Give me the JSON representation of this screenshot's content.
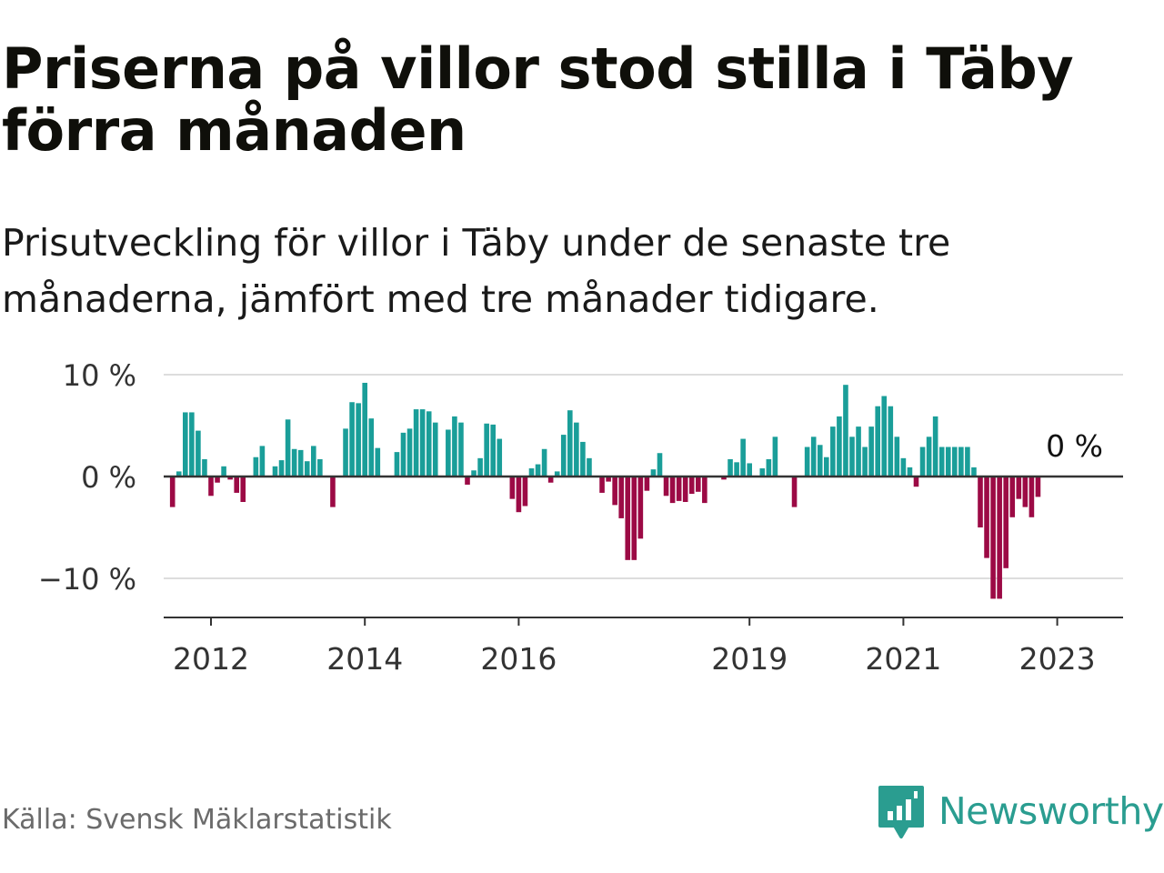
{
  "header": {
    "title": "Priserna på villor stod stilla i Täby förra månaden",
    "subtitle": "Prisutveckling för villor i Täby under de senaste tre månaderna, jämfört med tre månader tidigare."
  },
  "footer": {
    "source": "Källa: Svensk Mäklarstatistik",
    "brand": "Newsworthy"
  },
  "colors": {
    "positive": "#1a9e99",
    "negative": "#9c0a45",
    "grid": "#dddddd",
    "axis": "#333333",
    "brand": "#2a9d90"
  },
  "chart_data": {
    "type": "bar",
    "title": "Priserna på villor stod stilla i Täby förra månaden",
    "subtitle": "Prisutveckling för villor i Täby under de senaste tre månaderna, jämfört med tre månader tidigare.",
    "xlabel": "",
    "ylabel": "",
    "unit": "%",
    "ylim": [
      -14,
      10
    ],
    "y_ticks": [
      10,
      0,
      -10
    ],
    "y_tick_labels": [
      "10 %",
      "0 %",
      "−10 %"
    ],
    "x_ticks": [
      {
        "label": "2012",
        "month_index": 6
      },
      {
        "label": "2014",
        "month_index": 30
      },
      {
        "label": "2016",
        "month_index": 54
      },
      {
        "label": "2019",
        "month_index": 90
      },
      {
        "label": "2021",
        "month_index": 114
      },
      {
        "label": "2023",
        "month_index": 138
      }
    ],
    "first_month": "2011-07",
    "last_value_label": "0 %",
    "values": [
      -3,
      0.5,
      6.3,
      6.3,
      4.5,
      1.7,
      -1.9,
      -0.6,
      1,
      -0.3,
      -1.6,
      -2.5,
      0,
      1.9,
      3,
      0,
      1,
      1.6,
      5.6,
      2.7,
      2.6,
      1.5,
      3,
      1.7,
      0,
      -3,
      0,
      4.7,
      7.3,
      7.2,
      9.2,
      5.7,
      2.8,
      0,
      0,
      2.4,
      4.3,
      4.7,
      6.6,
      6.6,
      6.4,
      5.3,
      0,
      4.6,
      5.9,
      5.3,
      -0.8,
      0.6,
      1.8,
      5.2,
      5.1,
      3.7,
      0,
      -2.2,
      -3.5,
      -2.9,
      0.8,
      1.2,
      2.7,
      -0.6,
      0.5,
      4.1,
      6.5,
      5.3,
      3.4,
      1.8,
      0,
      -1.6,
      -0.5,
      -2.8,
      -4.1,
      -8.2,
      -8.2,
      -6.1,
      -1.4,
      0.7,
      2.3,
      -1.9,
      -2.6,
      -2.4,
      -2.5,
      -1.7,
      -1.5,
      -2.6,
      0,
      0,
      -0.3,
      1.7,
      1.4,
      3.7,
      1.3,
      0,
      0.8,
      1.7,
      3.9,
      0,
      0,
      -3,
      0,
      2.9,
      3.9,
      3.1,
      1.9,
      4.9,
      5.9,
      9,
      3.9,
      4.9,
      2.9,
      4.9,
      6.9,
      7.9,
      6.9,
      3.9,
      1.8,
      0.9,
      -1,
      2.9,
      3.9,
      5.9,
      2.9,
      2.9,
      2.9,
      2.9,
      2.9,
      0.9,
      -5,
      -8,
      -12,
      -12,
      -9,
      -4,
      -2.2,
      -3,
      -4,
      -2,
      0
    ]
  }
}
